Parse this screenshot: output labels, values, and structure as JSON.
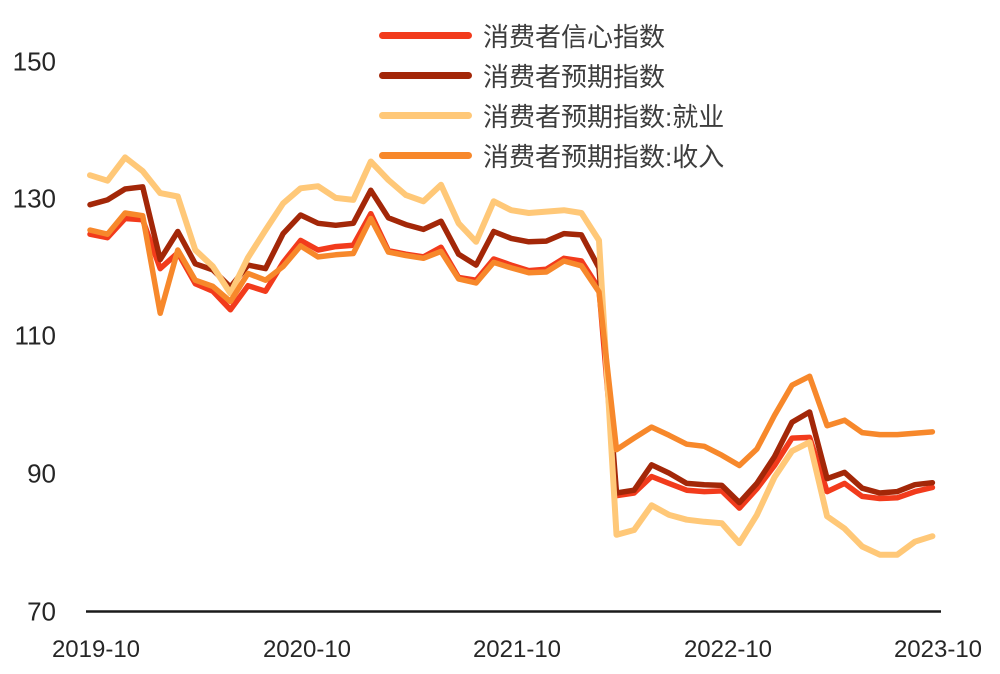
{
  "legend": {
    "items": [
      {
        "label": "消费者信心指数",
        "color": "#F23B1C"
      },
      {
        "label": "消费者预期指数",
        "color": "#A32708"
      },
      {
        "label": "消费者预期指数:就业",
        "color": "#FFC878"
      },
      {
        "label": "消费者预期指数:收入",
        "color": "#F7882B"
      }
    ]
  },
  "y_axis": {
    "tick_labels": [
      "150",
      "130",
      "110",
      "90",
      "70"
    ]
  },
  "x_axis": {
    "tick_labels": [
      "2019-10",
      "2020-10",
      "2021-10",
      "2022-10",
      "2023-10"
    ]
  },
  "chart_data": {
    "type": "line",
    "title": "",
    "xlabel": "",
    "ylabel": "",
    "ylim": [
      70,
      150
    ],
    "grid": false,
    "legend_position": "top-center",
    "x": [
      "2019-10",
      "2019-11",
      "2019-12",
      "2020-01",
      "2020-02",
      "2020-03",
      "2020-04",
      "2020-05",
      "2020-06",
      "2020-07",
      "2020-08",
      "2020-09",
      "2020-10",
      "2020-11",
      "2020-12",
      "2021-01",
      "2021-02",
      "2021-03",
      "2021-04",
      "2021-05",
      "2021-06",
      "2021-07",
      "2021-08",
      "2021-09",
      "2021-10",
      "2021-11",
      "2021-12",
      "2022-01",
      "2022-02",
      "2022-03",
      "2022-04",
      "2022-05",
      "2022-06",
      "2022-07",
      "2022-08",
      "2022-09",
      "2022-10",
      "2022-11",
      "2022-12",
      "2023-01",
      "2023-02",
      "2023-03",
      "2023-04",
      "2023-05",
      "2023-06",
      "2023-07",
      "2023-08",
      "2023-09",
      "2023-10"
    ],
    "x_tick_indices": [
      0,
      12,
      24,
      36,
      48
    ],
    "series": [
      {
        "name": "消费者信心指数",
        "key": "consumer-confidence-index",
        "color": "#F23B1C",
        "width": 5.5,
        "values": [
          124.9,
          124.4,
          127.2,
          127.0,
          119.9,
          122.2,
          117.7,
          116.6,
          113.9,
          117.4,
          116.6,
          120.8,
          124.0,
          122.6,
          123.1,
          123.3,
          127.9,
          122.5,
          122.0,
          121.6,
          123.0,
          118.6,
          118.2,
          121.3,
          120.4,
          119.6,
          119.8,
          121.4,
          121.0,
          117.0,
          86.8,
          87.2,
          89.6,
          88.6,
          87.6,
          87.4,
          87.5,
          85.0,
          87.8,
          91.2,
          95.2,
          95.3,
          87.4,
          88.6,
          86.7,
          86.4,
          86.5,
          87.4,
          88.0
        ]
      },
      {
        "name": "消费者预期指数",
        "key": "consumer-expectation-index",
        "color": "#A32708",
        "width": 5.5,
        "values": [
          129.2,
          129.9,
          131.5,
          131.8,
          121.2,
          125.3,
          120.6,
          119.7,
          117.2,
          120.4,
          119.9,
          125.0,
          127.7,
          126.5,
          126.2,
          126.5,
          131.3,
          127.3,
          126.3,
          125.6,
          126.8,
          122.0,
          120.4,
          125.3,
          124.3,
          123.8,
          123.9,
          125.0,
          124.8,
          120.0,
          87.2,
          87.6,
          91.3,
          90.1,
          88.6,
          88.4,
          88.3,
          85.8,
          88.6,
          92.5,
          97.5,
          99.0,
          89.3,
          90.2,
          87.9,
          87.2,
          87.4,
          88.4,
          88.7
        ]
      },
      {
        "name": "消费者预期指数:就业",
        "key": "expectation-employment",
        "color": "#FFC878",
        "width": 6,
        "values": [
          133.5,
          132.7,
          136.1,
          134.1,
          130.9,
          130.4,
          122.6,
          120.2,
          116.3,
          121.5,
          125.5,
          129.4,
          131.6,
          131.9,
          130.2,
          129.9,
          135.5,
          132.8,
          130.6,
          129.7,
          132.1,
          126.5,
          123.8,
          129.7,
          128.4,
          128.0,
          128.2,
          128.4,
          128.0,
          124.0,
          81.1,
          81.8,
          85.4,
          84.0,
          83.3,
          83.0,
          82.8,
          79.9,
          84.0,
          89.5,
          93.3,
          94.6,
          83.8,
          82.0,
          79.4,
          78.2,
          78.2,
          80.1,
          80.9
        ]
      },
      {
        "name": "消费者预期指数:收入",
        "key": "expectation-income",
        "color": "#F7882B",
        "width": 5.5,
        "values": [
          125.5,
          124.9,
          128.0,
          127.6,
          113.4,
          122.6,
          118.2,
          117.3,
          115.1,
          119.2,
          118.2,
          120.2,
          123.2,
          121.6,
          121.9,
          122.1,
          127.2,
          122.3,
          121.8,
          121.4,
          122.4,
          118.4,
          117.8,
          120.8,
          120.0,
          119.3,
          119.4,
          121.0,
          120.3,
          116.5,
          93.5,
          95.2,
          96.8,
          95.6,
          94.3,
          94.0,
          92.7,
          91.2,
          93.6,
          98.5,
          102.9,
          104.2,
          97.0,
          97.8,
          96.0,
          95.7,
          95.7,
          95.9,
          96.1
        ]
      }
    ]
  }
}
